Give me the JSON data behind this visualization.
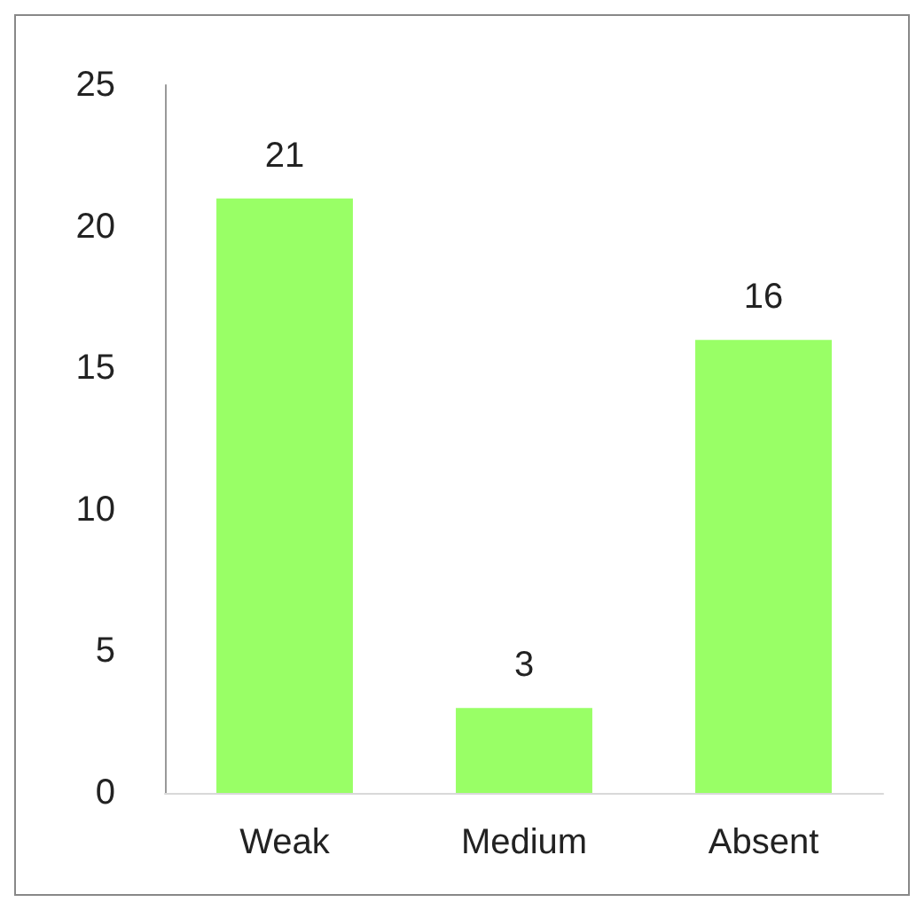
{
  "chart_data": {
    "type": "bar",
    "categories": [
      "Weak",
      "Medium",
      "Absent"
    ],
    "values": [
      21,
      3,
      16
    ],
    "color": "#99ff66",
    "ylim": [
      0,
      25
    ],
    "yticks": [
      0,
      5,
      10,
      15,
      20,
      25
    ],
    "grid": false,
    "data_labels": true
  }
}
